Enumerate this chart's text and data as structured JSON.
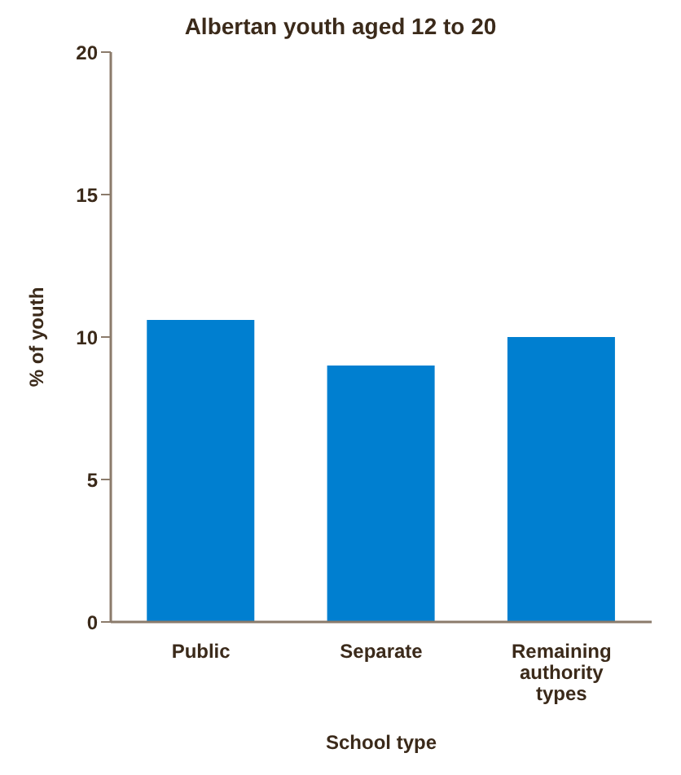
{
  "chart_data": {
    "type": "bar",
    "title": "Albertan youth aged 12 to 20",
    "xlabel": "School type",
    "ylabel": "% of youth",
    "categories": [
      "Public",
      "Separate",
      "Remaining authority types"
    ],
    "values": [
      10.6,
      9.0,
      10.0
    ],
    "color": "#007fd0",
    "ylim": [
      0,
      20
    ],
    "yticks": [
      0,
      5,
      10,
      15,
      20
    ],
    "grid": false,
    "legend": false
  }
}
